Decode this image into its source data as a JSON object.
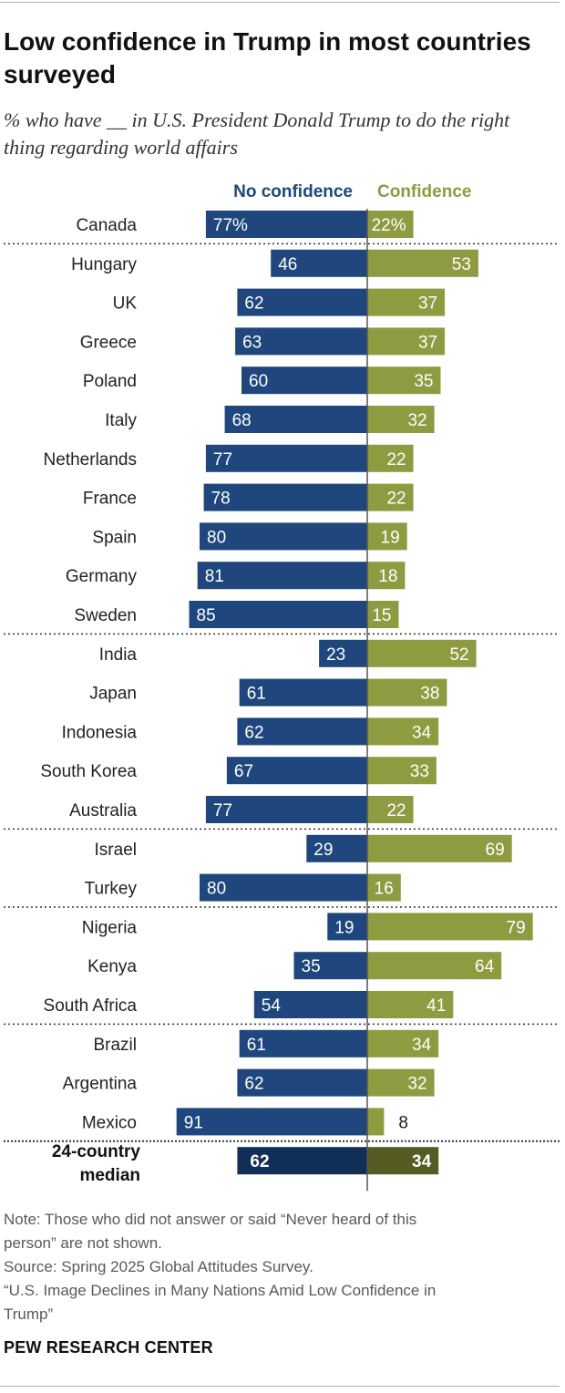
{
  "title": "Low confidence in Trump in most countries surveyed",
  "subtitle": "% who have __ in U.S. President Donald Trump to do the right thing regarding world affairs",
  "colors": {
    "no_confidence": "#1f477d",
    "confidence": "#8e9b41",
    "median_no_confidence": "#112e56",
    "median_confidence": "#555b22",
    "label_text_on_bar": "#ffffff",
    "separator": "#333333",
    "axis": "#555555"
  },
  "chart_data": {
    "type": "bar",
    "orientation": "diverging-horizontal",
    "legend": [
      "No confidence",
      "Confidence"
    ],
    "categories": [
      "Canada",
      "Hungary",
      "UK",
      "Greece",
      "Poland",
      "Italy",
      "Netherlands",
      "France",
      "Spain",
      "Germany",
      "Sweden",
      "India",
      "Japan",
      "Indonesia",
      "South Korea",
      "Australia",
      "Israel",
      "Turkey",
      "Nigeria",
      "Kenya",
      "South Africa",
      "Brazil",
      "Argentina",
      "Mexico"
    ],
    "series": [
      {
        "name": "No confidence",
        "values": [
          77,
          46,
          62,
          63,
          60,
          68,
          77,
          78,
          80,
          81,
          85,
          23,
          61,
          62,
          67,
          77,
          29,
          80,
          19,
          35,
          54,
          61,
          62,
          91
        ]
      },
      {
        "name": "Confidence",
        "values": [
          22,
          53,
          37,
          37,
          35,
          32,
          22,
          22,
          19,
          18,
          15,
          52,
          38,
          34,
          33,
          22,
          69,
          16,
          79,
          64,
          41,
          34,
          32,
          8
        ]
      }
    ],
    "value_labels": {
      "no_confidence": [
        "77%",
        "46",
        "62",
        "63",
        "60",
        "68",
        "77",
        "78",
        "80",
        "81",
        "85",
        "23",
        "61",
        "62",
        "67",
        "77",
        "29",
        "80",
        "19",
        "35",
        "54",
        "61",
        "62",
        "91"
      ],
      "confidence": [
        "22%",
        "53",
        "37",
        "37",
        "35",
        "32",
        "22",
        "22",
        "19",
        "18",
        "15",
        "52",
        "38",
        "34",
        "33",
        "22",
        "69",
        "16",
        "79",
        "64",
        "41",
        "34",
        "32",
        "8"
      ]
    },
    "group_breaks_after": [
      "Canada",
      "Sweden",
      "Australia",
      "Turkey",
      "South Africa",
      "Mexico"
    ],
    "median": {
      "label_line1": "24-country",
      "label_line2": "median",
      "no_confidence": 62,
      "confidence": 34,
      "no_confidence_label": "62",
      "confidence_label": "34"
    },
    "scale_max": 100
  },
  "note": {
    "line1": "Note: Those who did not answer or said “Never heard of this",
    "line2": "person” are not shown.",
    "source": "Source: Spring 2025 Global Attitudes Survey.",
    "report1": "“U.S. Image Declines in Many Nations Amid Low Confidence in",
    "report2": "Trump”"
  },
  "brand": "PEW RESEARCH CENTER"
}
